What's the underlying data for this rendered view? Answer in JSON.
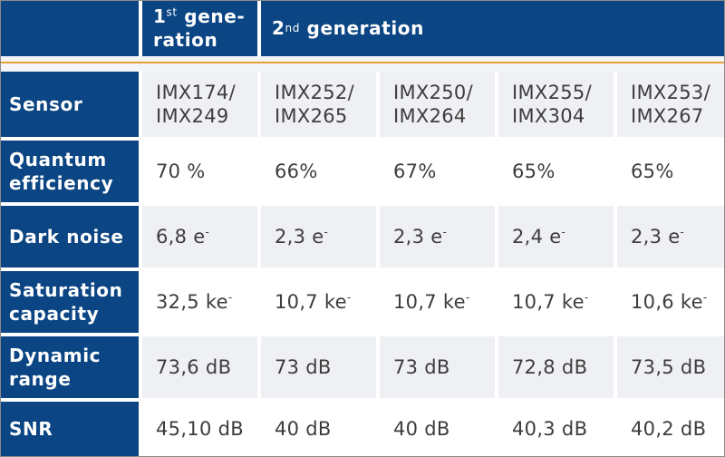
{
  "header": {
    "gen1_ord": "1",
    "gen1_sup": "st",
    "gen1_word1": "gene-",
    "gen1_word2": "ration",
    "gen2_ord": "2",
    "gen2_sup": "nd",
    "gen2_word": "generation"
  },
  "rows": [
    {
      "label_lines": [
        "Sensor"
      ],
      "values": [
        [
          "IMX174/",
          "IMX249"
        ],
        [
          "IMX252/",
          "IMX265"
        ],
        [
          "IMX250/",
          "IMX264"
        ],
        [
          "IMX255/",
          "IMX304"
        ],
        [
          "IMX253/",
          "IMX267"
        ]
      ]
    },
    {
      "label_lines": [
        "Quantum",
        "efficiency"
      ],
      "values": [
        "70 %",
        "66%",
        "67%",
        "65%",
        "65%"
      ]
    },
    {
      "label_lines": [
        "Dark noise"
      ],
      "values": [
        {
          "text": "6,8 e",
          "sup": "-"
        },
        {
          "text": "2,3 e",
          "sup": "-"
        },
        {
          "text": "2,3 e",
          "sup": "-"
        },
        {
          "text": "2,4 e",
          "sup": "-"
        },
        {
          "text": "2,3 e",
          "sup": "-"
        }
      ]
    },
    {
      "label_lines": [
        "Saturation",
        "capacity"
      ],
      "values": [
        {
          "text": "32,5 ke",
          "sup": "-"
        },
        {
          "text": "10,7 ke",
          "sup": "-"
        },
        {
          "text": "10,7 ke",
          "sup": "-"
        },
        {
          "text": "10,7 ke",
          "sup": "-"
        },
        {
          "text": "10,6 ke",
          "sup": "-"
        }
      ]
    },
    {
      "label_lines": [
        "Dynamic",
        "range"
      ],
      "values": [
        "73,6 dB",
        "73 dB",
        "73 dB",
        "72,8 dB",
        "73,5 dB"
      ]
    },
    {
      "label_lines": [
        "SNR"
      ],
      "values": [
        "45,10 dB",
        "40 dB",
        "40 dB",
        "40,3 dB",
        "40,2 dB"
      ]
    }
  ],
  "colors": {
    "header_blue": "#0b4583",
    "accent_orange": "#e9a23b",
    "row_shade": "#eef0f4"
  }
}
